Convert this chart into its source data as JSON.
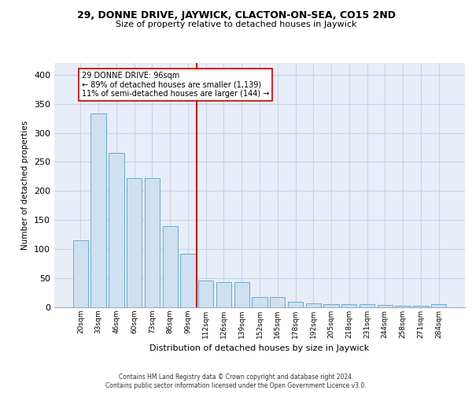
{
  "title": "29, DONNE DRIVE, JAYWICK, CLACTON-ON-SEA, CO15 2ND",
  "subtitle": "Size of property relative to detached houses in Jaywick",
  "xlabel": "Distribution of detached houses by size in Jaywick",
  "ylabel": "Number of detached properties",
  "categories": [
    "20sqm",
    "33sqm",
    "46sqm",
    "60sqm",
    "73sqm",
    "86sqm",
    "99sqm",
    "112sqm",
    "126sqm",
    "139sqm",
    "152sqm",
    "165sqm",
    "178sqm",
    "192sqm",
    "205sqm",
    "218sqm",
    "231sqm",
    "244sqm",
    "258sqm",
    "271sqm",
    "284sqm"
  ],
  "values": [
    115,
    333,
    265,
    222,
    222,
    140,
    92,
    46,
    44,
    44,
    17,
    17,
    9,
    7,
    6,
    6,
    6,
    4,
    3,
    3,
    5
  ],
  "bar_color": "#cfe0f0",
  "bar_edge_color": "#6aaad4",
  "vline_color": "#cc0000",
  "annotation_text": "29 DONNE DRIVE: 96sqm\n← 89% of detached houses are smaller (1,139)\n11% of semi-detached houses are larger (144) →",
  "ylim": [
    0,
    420
  ],
  "yticks": [
    0,
    50,
    100,
    150,
    200,
    250,
    300,
    350,
    400
  ],
  "grid_color": "#c8d4e8",
  "background_color": "#e8eef8",
  "footer_line1": "Contains HM Land Registry data © Crown copyright and database right 2024.",
  "footer_line2": "Contains public sector information licensed under the Open Government Licence v3.0."
}
